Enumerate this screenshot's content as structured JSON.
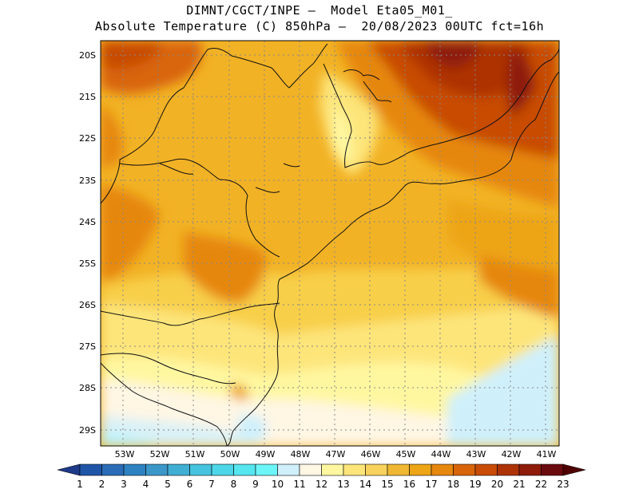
{
  "header": {
    "line1": "DIMNT/CGCT/INPE –  Model Eta05_M01_",
    "line2": "Absolute Temperature (C) 850hPa –  20/08/2023 00UTC fct=16h"
  },
  "map": {
    "lat_labels": [
      "20S",
      "21S",
      "22S",
      "23S",
      "24S",
      "25S",
      "26S",
      "27S",
      "28S",
      "29S"
    ],
    "lon_labels": [
      "53W",
      "52W",
      "51W",
      "50W",
      "49W",
      "48W",
      "47W",
      "46W",
      "45W",
      "44W",
      "43W",
      "42W",
      "41W"
    ],
    "region": "South/Southeast Brazil and adjacent South Atlantic",
    "variable": "Absolute Temperature (C) 850hPa"
  },
  "colorbar": {
    "labels": [
      "1",
      "2",
      "3",
      "4",
      "5",
      "6",
      "7",
      "8",
      "9",
      "10",
      "11",
      "12",
      "13",
      "14",
      "15",
      "16",
      "17",
      "18",
      "19",
      "20",
      "21",
      "22",
      "23"
    ],
    "colors": [
      "#1e3a8a",
      "#1f55a7",
      "#2b6cb8",
      "#2f82c0",
      "#3c97c9",
      "#41afd4",
      "#46c4df",
      "#4dd6e8",
      "#56e6f0",
      "#6cf6f8",
      "#cff0fb",
      "#fff6e4",
      "#fff7a0",
      "#fde57a",
      "#f8d25c",
      "#f0b832",
      "#eda516",
      "#e6870e",
      "#d9650a",
      "#c84b06",
      "#ad3206",
      "#8e1c08",
      "#6b0a0f",
      "#4f0000"
    ]
  }
}
